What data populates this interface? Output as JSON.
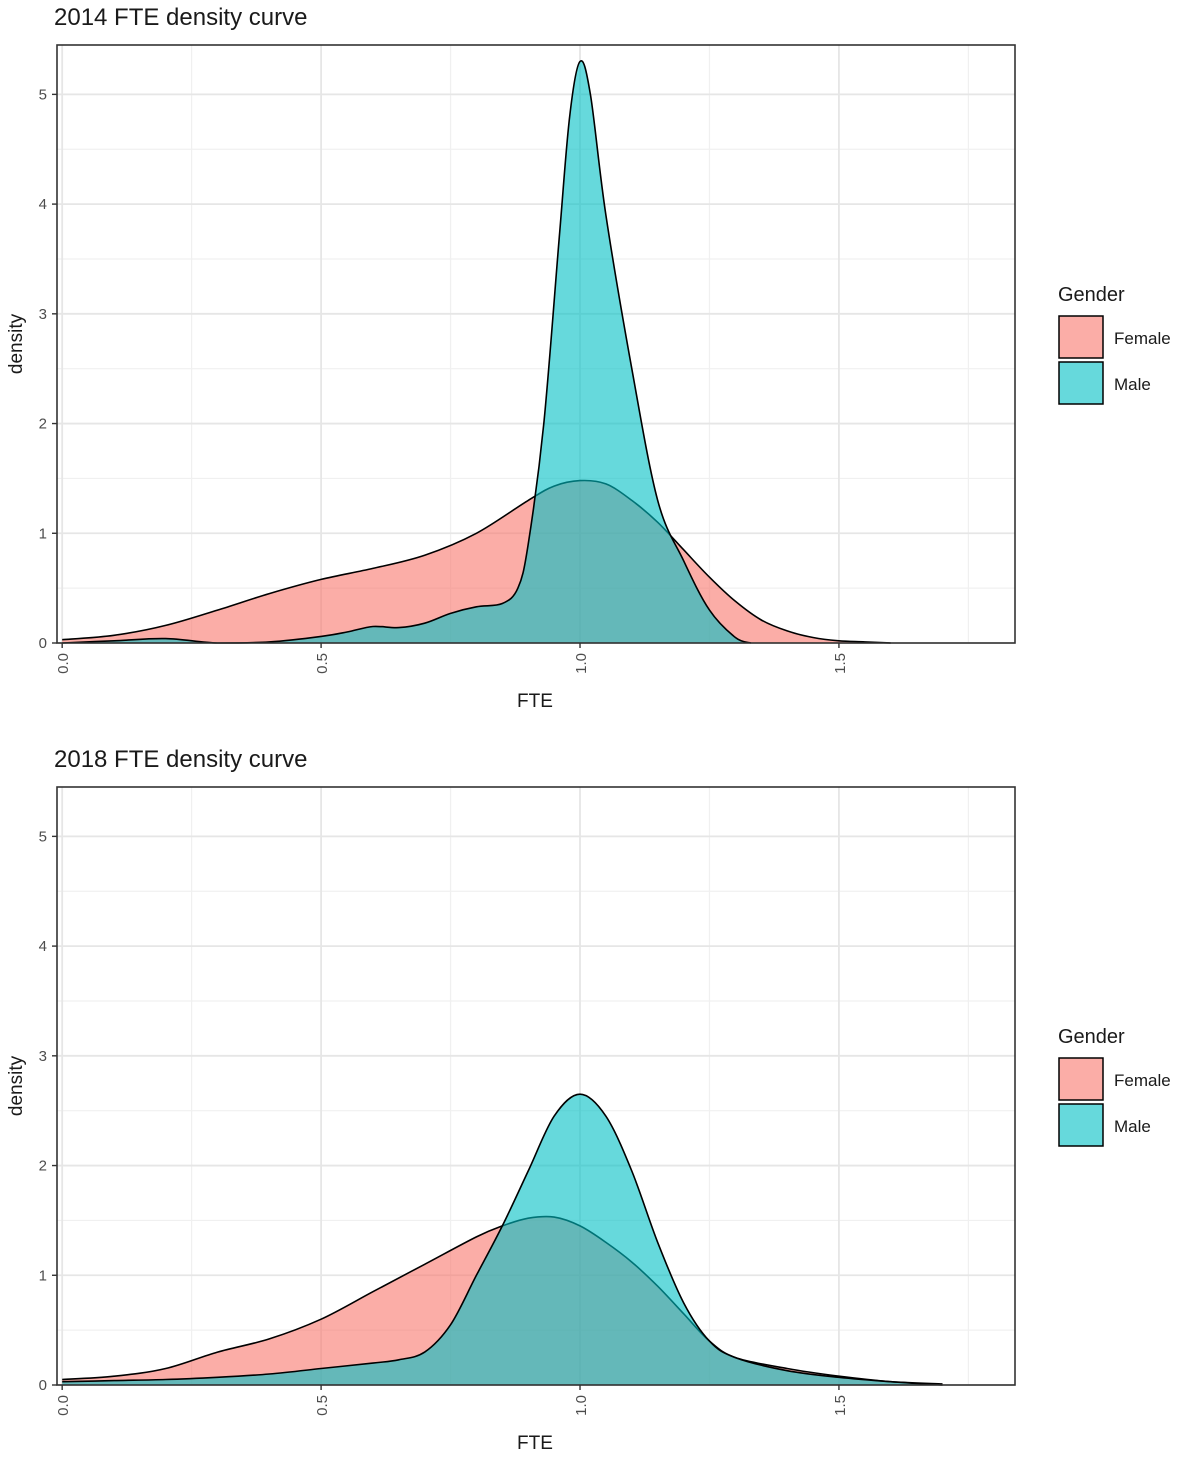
{
  "chart_data": [
    {
      "type": "area",
      "title": "2014 FTE density curve",
      "xlabel": "FTE",
      "ylabel": "density",
      "xlim": [
        -0.01,
        1.84
      ],
      "ylim": [
        0,
        5.45
      ],
      "x_ticks": [
        "0.0",
        "0.5",
        "1.0",
        "1.5"
      ],
      "y_ticks": [
        "0",
        "1",
        "2",
        "3",
        "4",
        "5"
      ],
      "legend": {
        "title": "Gender",
        "position": "right"
      },
      "series": [
        {
          "name": "Female",
          "color": "#F8766D",
          "points": [
            [
              0.0,
              0.03
            ],
            [
              0.1,
              0.07
            ],
            [
              0.2,
              0.16
            ],
            [
              0.3,
              0.3
            ],
            [
              0.4,
              0.45
            ],
            [
              0.5,
              0.58
            ],
            [
              0.6,
              0.68
            ],
            [
              0.7,
              0.8
            ],
            [
              0.8,
              1.0
            ],
            [
              0.9,
              1.3
            ],
            [
              0.95,
              1.43
            ],
            [
              1.0,
              1.48
            ],
            [
              1.05,
              1.45
            ],
            [
              1.1,
              1.3
            ],
            [
              1.15,
              1.1
            ],
            [
              1.2,
              0.85
            ],
            [
              1.25,
              0.6
            ],
            [
              1.3,
              0.38
            ],
            [
              1.35,
              0.21
            ],
            [
              1.4,
              0.11
            ],
            [
              1.45,
              0.05
            ],
            [
              1.5,
              0.02
            ],
            [
              1.55,
              0.01
            ],
            [
              1.6,
              0.0
            ]
          ]
        },
        {
          "name": "Male",
          "color": "#00BFC4",
          "points": [
            [
              0.0,
              0.0
            ],
            [
              0.1,
              0.02
            ],
            [
              0.2,
              0.04
            ],
            [
              0.3,
              0.0
            ],
            [
              0.4,
              0.01
            ],
            [
              0.5,
              0.06
            ],
            [
              0.55,
              0.1
            ],
            [
              0.6,
              0.15
            ],
            [
              0.65,
              0.14
            ],
            [
              0.7,
              0.18
            ],
            [
              0.75,
              0.27
            ],
            [
              0.8,
              0.33
            ],
            [
              0.85,
              0.36
            ],
            [
              0.88,
              0.5
            ],
            [
              0.9,
              0.9
            ],
            [
              0.93,
              2.0
            ],
            [
              0.96,
              3.7
            ],
            [
              0.98,
              4.8
            ],
            [
              1.0,
              5.3
            ],
            [
              1.02,
              5.0
            ],
            [
              1.05,
              3.9
            ],
            [
              1.1,
              2.5
            ],
            [
              1.15,
              1.3
            ],
            [
              1.2,
              0.75
            ],
            [
              1.25,
              0.3
            ],
            [
              1.3,
              0.05
            ],
            [
              1.33,
              0.0
            ]
          ]
        }
      ]
    },
    {
      "type": "area",
      "title": "2018 FTE density curve",
      "xlabel": "FTE",
      "ylabel": "density",
      "xlim": [
        -0.01,
        1.84
      ],
      "ylim": [
        0,
        5.45
      ],
      "x_ticks": [
        "0.0",
        "0.5",
        "1.0",
        "1.5"
      ],
      "y_ticks": [
        "0",
        "1",
        "2",
        "3",
        "4",
        "5"
      ],
      "legend": {
        "title": "Gender",
        "position": "right"
      },
      "series": [
        {
          "name": "Female",
          "color": "#F8766D",
          "points": [
            [
              0.0,
              0.05
            ],
            [
              0.1,
              0.08
            ],
            [
              0.2,
              0.15
            ],
            [
              0.3,
              0.3
            ],
            [
              0.4,
              0.42
            ],
            [
              0.5,
              0.6
            ],
            [
              0.6,
              0.85
            ],
            [
              0.7,
              1.1
            ],
            [
              0.8,
              1.35
            ],
            [
              0.85,
              1.45
            ],
            [
              0.9,
              1.52
            ],
            [
              0.95,
              1.53
            ],
            [
              1.0,
              1.45
            ],
            [
              1.05,
              1.3
            ],
            [
              1.1,
              1.12
            ],
            [
              1.15,
              0.9
            ],
            [
              1.2,
              0.65
            ],
            [
              1.25,
              0.4
            ],
            [
              1.3,
              0.25
            ],
            [
              1.4,
              0.15
            ],
            [
              1.5,
              0.08
            ],
            [
              1.6,
              0.03
            ],
            [
              1.7,
              0.01
            ]
          ]
        },
        {
          "name": "Male",
          "color": "#00BFC4",
          "points": [
            [
              0.0,
              0.03
            ],
            [
              0.1,
              0.04
            ],
            [
              0.2,
              0.05
            ],
            [
              0.3,
              0.07
            ],
            [
              0.4,
              0.1
            ],
            [
              0.5,
              0.15
            ],
            [
              0.6,
              0.2
            ],
            [
              0.65,
              0.23
            ],
            [
              0.7,
              0.3
            ],
            [
              0.75,
              0.55
            ],
            [
              0.8,
              1.0
            ],
            [
              0.85,
              1.45
            ],
            [
              0.9,
              1.95
            ],
            [
              0.95,
              2.45
            ],
            [
              1.0,
              2.65
            ],
            [
              1.05,
              2.45
            ],
            [
              1.1,
              1.95
            ],
            [
              1.15,
              1.3
            ],
            [
              1.2,
              0.75
            ],
            [
              1.25,
              0.4
            ],
            [
              1.3,
              0.25
            ],
            [
              1.4,
              0.13
            ],
            [
              1.5,
              0.07
            ],
            [
              1.6,
              0.03
            ],
            [
              1.7,
              0.0
            ]
          ]
        }
      ]
    }
  ]
}
